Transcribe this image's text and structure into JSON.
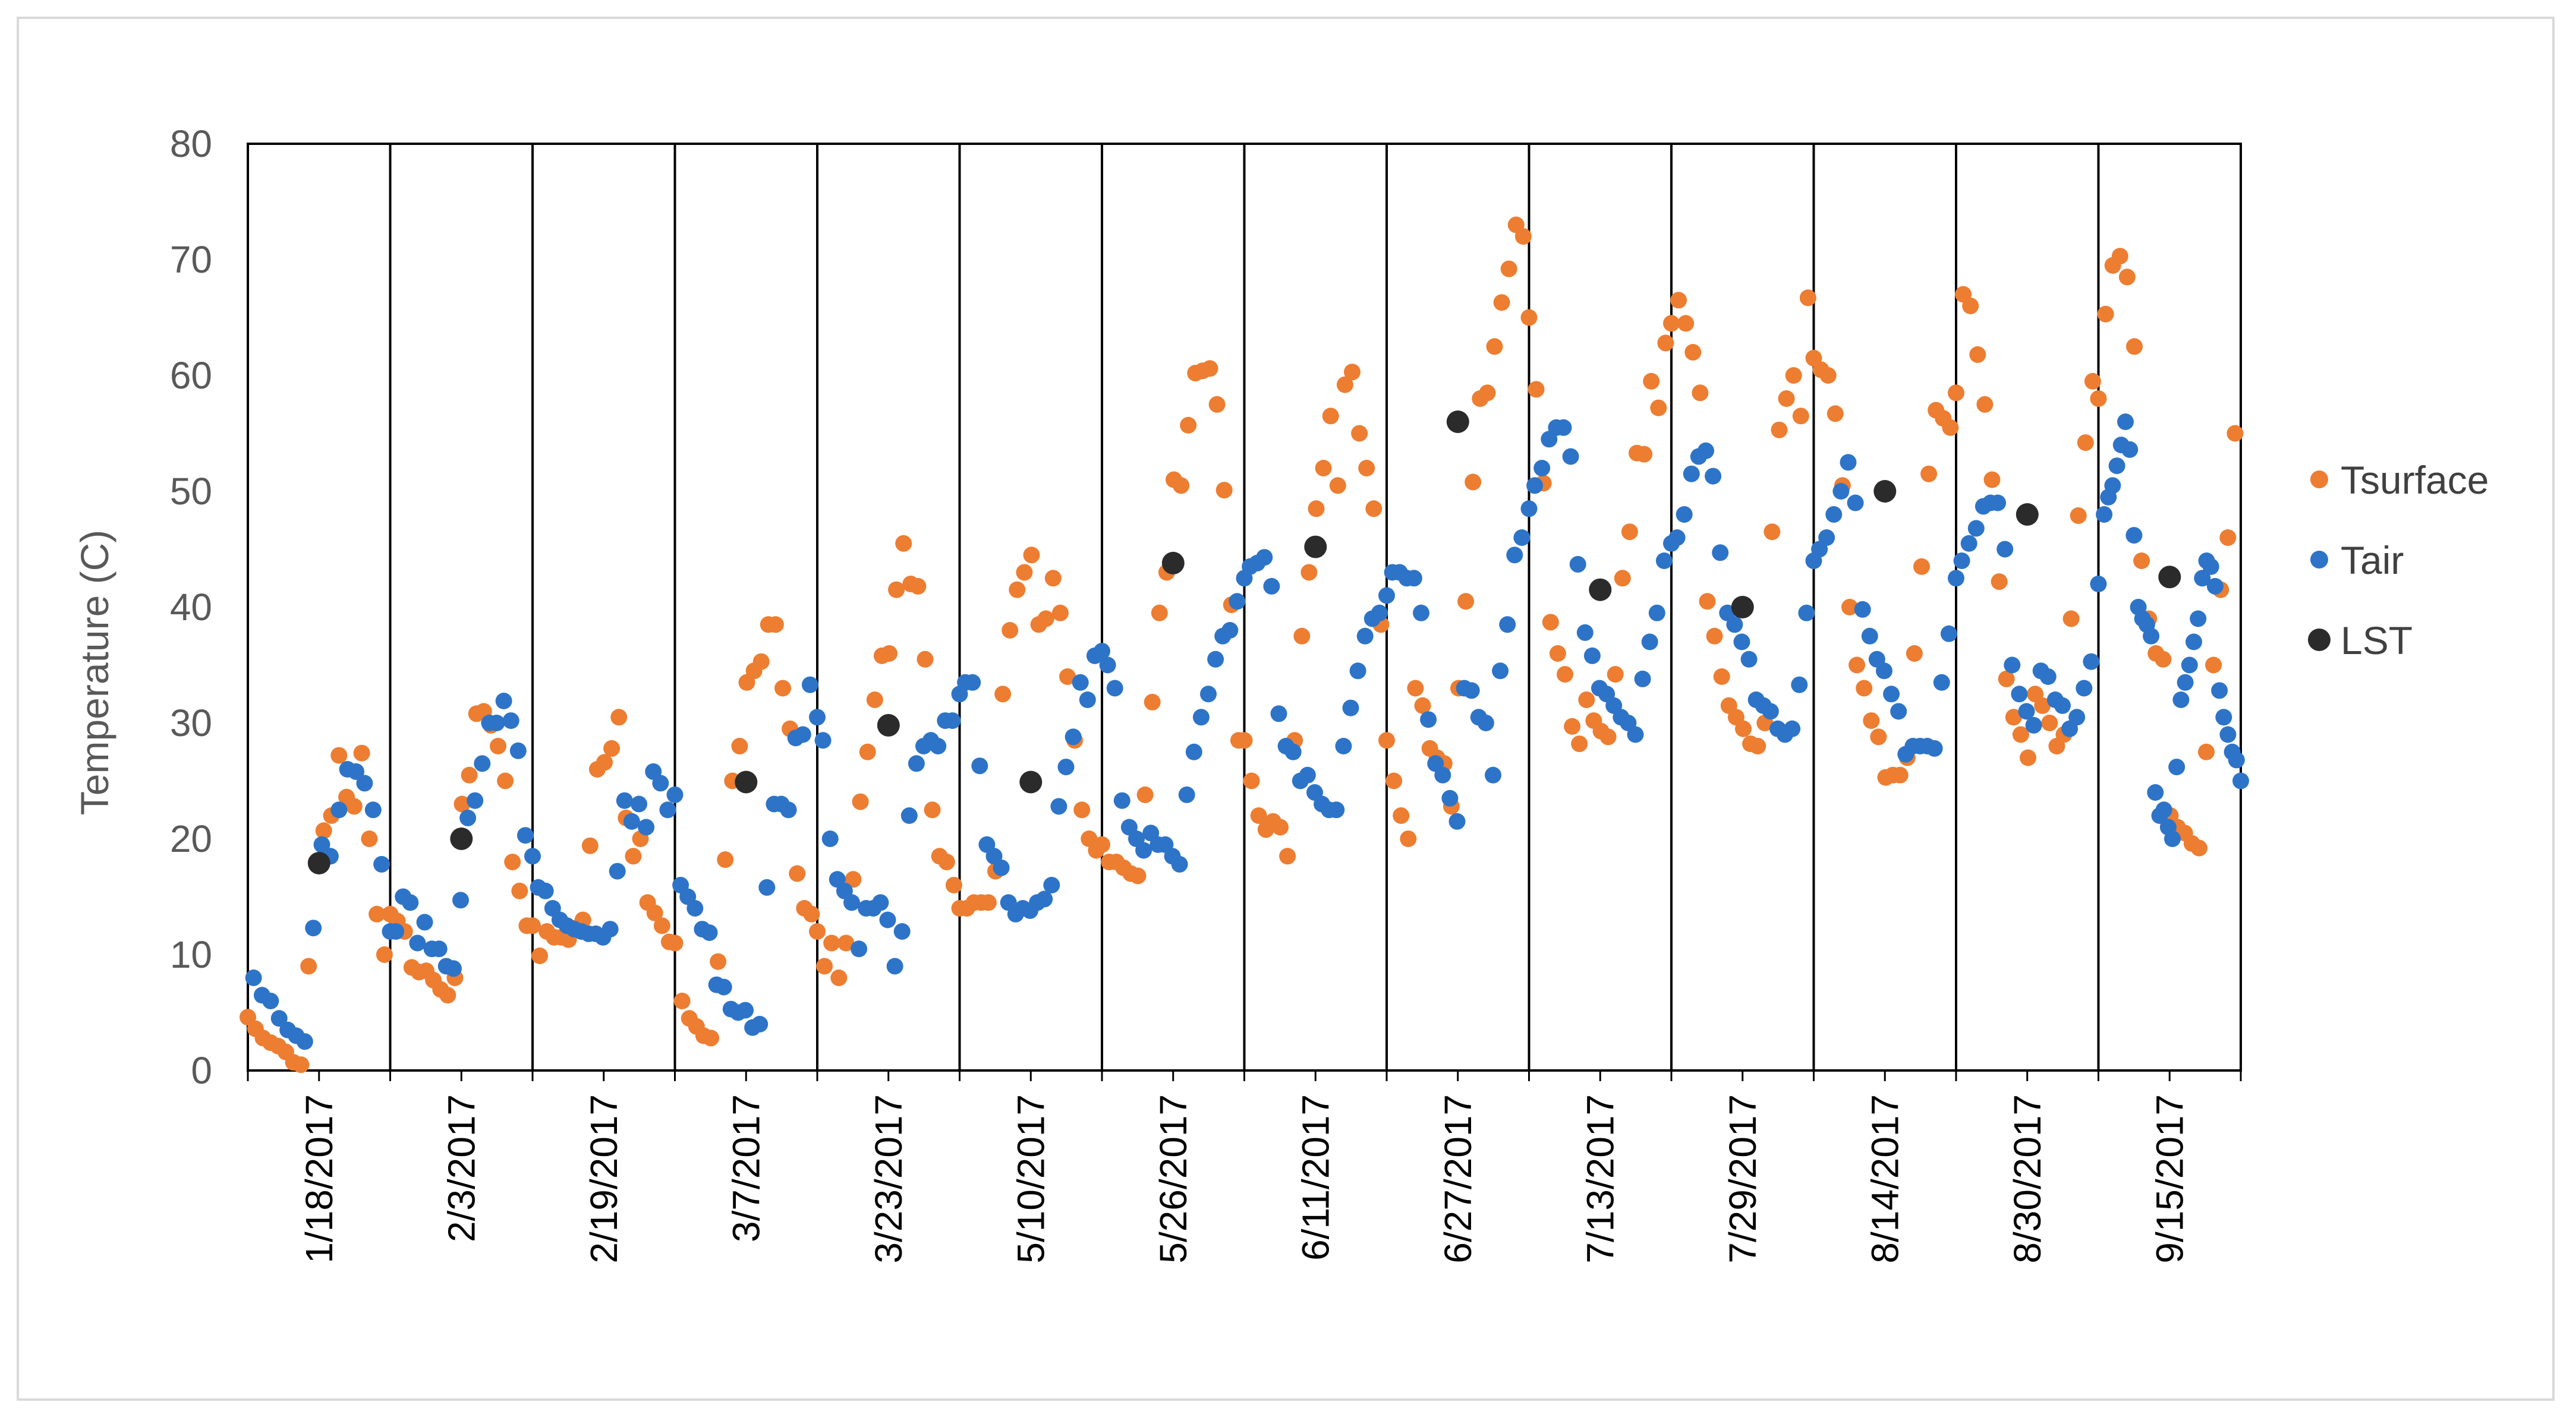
{
  "chart_data": {
    "type": "scatter",
    "title": "",
    "xlabel": "",
    "ylabel": "Temperature (C)",
    "ylim": [
      0,
      80
    ],
    "yticks": [
      0,
      10,
      20,
      30,
      40,
      50,
      60,
      70,
      80
    ],
    "legend_position": "right",
    "panels": [
      "1/18/2017",
      "2/3/2017",
      "2/19/2017",
      "3/7/2017",
      "3/23/2017",
      "5/10/2017",
      "5/26/2017",
      "6/11/2017",
      "6/27/2017",
      "7/13/2017",
      "7/29/2017",
      "8/14/2017",
      "8/30/2017",
      "9/15/2017"
    ],
    "series": [
      {
        "name": "Tsurface",
        "color": "#ED7D31",
        "values": [
          [
            4.6,
            3.6,
            2.8,
            2.4,
            2.1,
            1.6,
            0.7,
            0.5,
            9.0,
            18.0,
            20.7,
            22.0,
            27.2,
            23.6,
            22.8,
            27.4,
            20.0,
            13.5,
            10.0
          ],
          [
            13.5,
            12.9,
            12.0,
            8.9,
            8.5,
            8.6,
            7.8,
            7.0,
            6.5,
            8.0,
            23.0,
            25.5,
            30.8,
            31.0,
            29.8,
            28.0,
            25.0,
            18.0,
            15.5,
            12.5
          ],
          [
            12.5,
            9.9,
            12.0,
            11.5,
            11.5,
            11.3,
            12.3,
            13.0,
            19.4,
            26.0,
            26.6,
            27.8,
            30.5,
            21.8,
            18.5,
            20.0,
            14.5,
            13.6,
            12.5,
            11.1
          ],
          [
            11.0,
            6.0,
            4.5,
            3.8,
            3.0,
            2.8,
            9.4,
            18.2,
            25.0,
            28.0,
            33.5,
            34.5,
            35.3,
            38.5,
            38.5,
            33.0,
            29.5,
            17.0,
            14.0,
            13.5
          ],
          [
            12.0,
            9.0,
            11.0,
            8.0,
            11.0,
            16.5,
            23.2,
            27.5,
            32.0,
            35.8,
            36.0,
            41.5,
            45.5,
            42.0,
            41.8,
            35.5,
            22.5,
            18.5,
            18.0,
            16.0
          ],
          [
            14.0,
            14.0,
            14.5,
            14.5,
            14.5,
            17.2,
            32.5,
            38.0,
            41.5,
            43.0,
            44.5,
            38.5,
            39.0,
            42.5,
            39.5,
            34.0,
            28.5,
            22.5,
            20.0,
            19.0
          ],
          [
            19.5,
            18.0,
            18.0,
            17.5,
            17.0,
            16.8,
            23.8,
            31.8,
            39.5,
            43.0,
            51.0,
            50.5,
            55.7,
            60.2,
            60.4,
            60.6,
            57.5,
            50.1,
            40.2,
            28.5
          ],
          [
            28.5,
            25.0,
            22.0,
            20.8,
            21.5,
            21.0,
            18.5,
            28.5,
            37.5,
            43.0,
            48.5,
            52.0,
            56.5,
            50.5,
            59.2,
            60.3,
            55.0,
            52.0,
            48.5,
            38.5
          ],
          [
            28.5,
            25.0,
            22.0,
            20.0,
            33.0,
            31.5,
            27.8,
            27.0,
            26.5,
            22.8,
            33.0,
            40.5,
            50.8,
            58.0,
            58.5,
            62.5,
            66.3,
            69.2,
            73.0,
            72.0
          ],
          [
            65.0,
            58.8,
            50.7,
            38.7,
            36.0,
            34.2,
            29.7,
            28.2,
            32.0,
            30.2,
            29.3,
            28.8,
            34.2,
            42.5,
            46.5,
            53.3,
            53.2,
            59.5,
            57.2,
            62.8
          ],
          [
            64.5,
            66.5,
            64.5,
            62.0,
            58.5,
            40.5,
            37.5,
            34.0,
            31.5,
            30.5,
            29.5,
            28.2,
            28.0,
            30.0,
            46.5,
            55.3,
            58.0,
            60.0,
            56.5,
            66.7
          ],
          [
            61.5,
            60.5,
            60.0,
            56.7,
            50.5,
            40.0,
            35.0,
            33.0,
            30.2,
            28.8,
            25.3,
            25.5,
            25.5,
            27.0,
            36.0,
            43.5,
            51.5,
            57.0,
            56.3,
            55.5
          ],
          [
            58.5,
            67.0,
            66.0,
            61.8,
            57.5,
            51.0,
            42.2,
            33.8,
            30.5,
            29.0,
            27.0,
            32.5,
            31.5,
            30.0,
            28.0,
            29.0,
            39.0,
            47.9,
            54.2,
            59.5
          ],
          [
            58.0,
            65.3,
            69.5,
            70.3,
            68.5,
            62.5,
            44.0,
            39.0,
            36.0,
            35.5,
            22.0,
            21.0,
            20.5,
            19.6,
            19.2,
            27.5,
            35.0,
            41.5,
            46.0,
            55.0
          ]
        ]
      },
      {
        "name": "Tair",
        "color": "#2D74C8",
        "values": [
          [
            8.0,
            6.5,
            6.0,
            4.5,
            3.5,
            3.0,
            2.5,
            12.3,
            19.5,
            18.5,
            22.5,
            26.0,
            25.8,
            24.8,
            22.5,
            17.8,
            12.0
          ],
          [
            12.0,
            15.0,
            14.5,
            11.0,
            12.8,
            10.5,
            10.5,
            9.0,
            8.8,
            14.7,
            21.8,
            23.3,
            26.5,
            30.0,
            30.0,
            31.9,
            30.2,
            27.6,
            20.3,
            18.5
          ],
          [
            15.8,
            15.5,
            14.0,
            13.0,
            12.5,
            12.2,
            12.0,
            11.8,
            11.8,
            11.5,
            12.2,
            17.2,
            23.3,
            21.5,
            23.0,
            21.0,
            25.8,
            24.8,
            22.5,
            23.8
          ],
          [
            16.0,
            15.0,
            14.0,
            12.2,
            11.9,
            7.4,
            7.2,
            5.3,
            5.0,
            5.2,
            3.7,
            4.0,
            15.8,
            23.0,
            23.0,
            22.5,
            28.7,
            29.0,
            33.3,
            30.5
          ],
          [
            28.5,
            20.0,
            16.5,
            15.5,
            14.5,
            10.5,
            14.0,
            14.0,
            14.5,
            13.0,
            9.0,
            12.0,
            22.0,
            26.5,
            28.0,
            28.5,
            28.0,
            30.2,
            30.2,
            32.5
          ],
          [
            33.5,
            33.5,
            26.3,
            19.5,
            18.5,
            17.5,
            14.5,
            13.5,
            14.0,
            13.8,
            14.5,
            14.8,
            16.0,
            22.8,
            26.2,
            28.8,
            33.5,
            32.0,
            35.8,
            36.2
          ],
          [
            35.0,
            33.0,
            23.3,
            21.0,
            20.0,
            19.0,
            20.5,
            19.5,
            19.5,
            18.5,
            17.8,
            23.8,
            27.5,
            30.5,
            32.5,
            35.5,
            37.5,
            38.0,
            40.5,
            42.5
          ],
          [
            43.5,
            43.8,
            44.3,
            41.8,
            30.8,
            28.0,
            27.5,
            25.0,
            25.5,
            24.0,
            23.0,
            22.5,
            22.5,
            28.0,
            31.3,
            34.5,
            37.5,
            39.0,
            39.5,
            41.0
          ],
          [
            43.0,
            43.0,
            42.5,
            42.5,
            39.5,
            30.3,
            26.5,
            25.5,
            23.5,
            21.5,
            33.0,
            32.8,
            30.5,
            30.0,
            25.5,
            34.5,
            38.5,
            44.5,
            46.0,
            48.5
          ],
          [
            50.5,
            52.0,
            54.5,
            55.5,
            55.5,
            53.0,
            43.7,
            37.8,
            35.8,
            33.0,
            32.5,
            31.5,
            30.5,
            30.0,
            29.0,
            33.8,
            37.0,
            39.5,
            44.0,
            45.5
          ],
          [
            46.0,
            48.0,
            51.5,
            53.0,
            53.5,
            51.3,
            44.7,
            39.5,
            38.5,
            37.0,
            35.5,
            32.0,
            31.5,
            31.0,
            29.5,
            29.0,
            29.5,
            33.3,
            39.5,
            44.0
          ],
          [
            45.0,
            46.0,
            48.0,
            50.0,
            52.5,
            49.0,
            39.8,
            37.5,
            35.5,
            34.5,
            32.5,
            31.0,
            27.3,
            28.0,
            28.0,
            28.0,
            27.8,
            33.5,
            37.7,
            42.5
          ],
          [
            44.0,
            45.5,
            46.8,
            48.7,
            49.0,
            49.0,
            45.0,
            35.0,
            32.5,
            31.0,
            29.8,
            34.5,
            34.0,
            32.0,
            31.5,
            29.5,
            30.5,
            33.0,
            35.3,
            42.0
          ],
          [
            48.0,
            49.5,
            50.5,
            52.2,
            54.0,
            56.0,
            53.6,
            46.2,
            40.0,
            39.0,
            38.5,
            37.5,
            24.0,
            22.0,
            22.5,
            21.0,
            20.0,
            26.2,
            32.0,
            33.5,
            35.0,
            37.0,
            39.0,
            42.5,
            44.0,
            43.5,
            41.8,
            32.8,
            30.5,
            29.0,
            27.5,
            26.8,
            25.0
          ]
        ]
      },
      {
        "name": "LST",
        "color": "#2B2B2B",
        "values": [
          17.9,
          20.0,
          null,
          24.9,
          29.8,
          24.9,
          43.8,
          45.2,
          56.0,
          41.5,
          40.0,
          50.0,
          48.0,
          42.6
        ]
      }
    ]
  }
}
